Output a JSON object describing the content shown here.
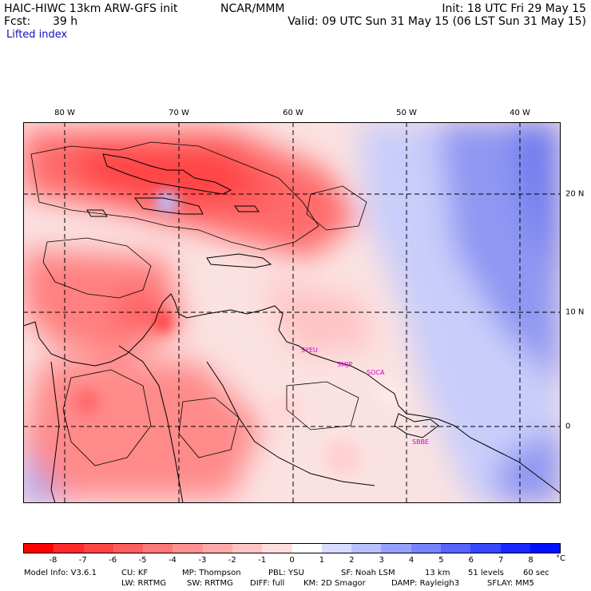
{
  "header": {
    "model_title": "HAIC-HIWC 13km ARW-GFS init",
    "org": "NCAR/MMM",
    "init": "Init: 18 UTC Fri 29 May 15",
    "fcst_label": "Fcst:",
    "fcst_value": "39 h",
    "valid": "Valid: 09 UTC Sun 31 May 15 (06 LST Sun 31 May 15)",
    "field": "Lifted index"
  },
  "map": {
    "lon_labels": [
      "80 W",
      "70 W",
      "60 W",
      "50 W",
      "40 W"
    ],
    "lat_labels": [
      "20 N",
      "10 N",
      "0"
    ],
    "stations": [
      "SYEU",
      "SMJP",
      "SOCA",
      "SBBE"
    ],
    "field_range": [
      -8,
      8
    ],
    "units": "°C"
  },
  "colorbar": {
    "ticks": [
      "-8",
      "-7",
      "-6",
      "-5",
      "-4",
      "-3",
      "-2",
      "-1",
      "0",
      "1",
      "2",
      "3",
      "4",
      "5",
      "6",
      "7",
      "8"
    ],
    "unit": "°C",
    "colors": [
      "#ff0000",
      "#ff2a2a",
      "#ff4444",
      "#ff5e5e",
      "#ff7878",
      "#ff9292",
      "#ffaaaa",
      "#ffc4c4",
      "#ffdede",
      "#ffffff",
      "#d8dcff",
      "#b8c0ff",
      "#98a0ff",
      "#7884ff",
      "#5864ff",
      "#3848ff",
      "#1828ff",
      "#0010ff"
    ]
  },
  "footer": {
    "model_info": "Model Info: V3.6.1",
    "cu": "CU: KF",
    "mp": "MP: Thompson",
    "pbl": "PBL: YSU",
    "sf": "SF: Noah LSM",
    "res": "13 km",
    "levels": "51 levels",
    "dt": "60 sec",
    "lw": "LW: RRTMG",
    "sw": "SW: RRTMG",
    "diff": "DIFF: full",
    "km": "KM: 2D Smagor",
    "damp": "DAMP: Rayleigh3",
    "sflay": "SFLAY: MM5"
  }
}
